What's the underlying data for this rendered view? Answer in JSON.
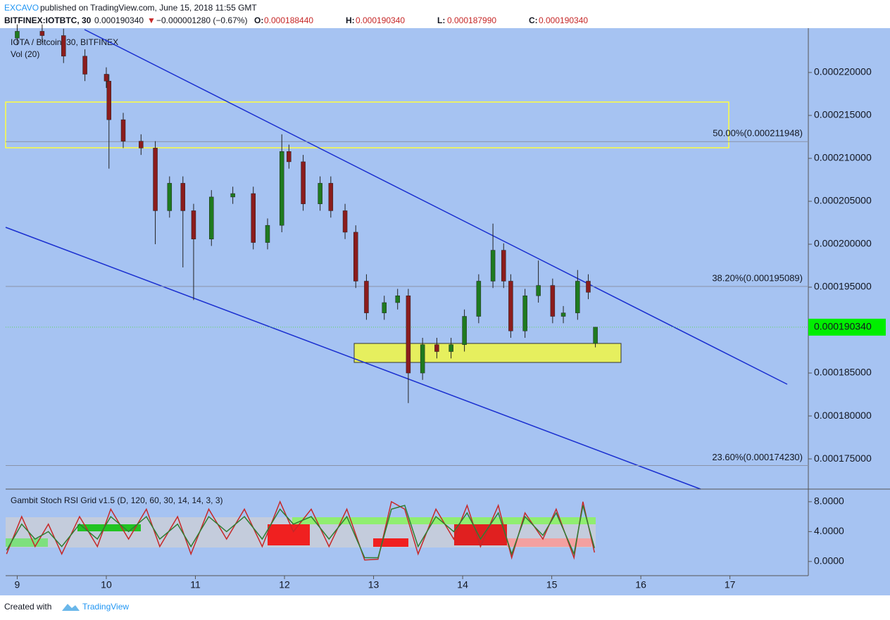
{
  "header": {
    "author": "EXCAVO",
    "published": "published on TradingView.com, June 15, 2018 11:55 GMT",
    "symbol": "BITFINEX:IOTBTC, 30",
    "price": "0.000190340",
    "arrow": "▼",
    "change": "−0.000001280 (−0.67%)",
    "ohlc": [
      {
        "label": "O:",
        "value": "0.000188440"
      },
      {
        "label": "H:",
        "value": "0.000190340"
      },
      {
        "label": "L:",
        "value": "0.000187990"
      },
      {
        "label": "C:",
        "value": "0.000190340"
      }
    ],
    "legend": "IOTA / Bitcoin, 30, BITFINEX",
    "volume": "Vol (20)"
  },
  "footer": {
    "created": "Created with",
    "brand": "TradingView"
  },
  "chart_data": [
    {
      "type": "candlestick",
      "up_color": "#1f7a1f",
      "down_color": "#8b1c1c",
      "x": [
        9.0,
        9.28,
        9.52,
        9.76,
        10.0,
        10.03,
        10.19,
        10.39,
        10.55,
        10.71,
        10.86,
        10.98,
        11.18,
        11.42,
        11.65,
        11.81,
        11.97,
        12.05,
        12.21,
        12.4,
        12.52,
        12.68,
        12.8,
        12.92,
        13.12,
        13.27,
        13.39,
        13.55,
        13.71,
        13.87,
        14.02,
        14.18,
        14.34,
        14.46,
        14.54,
        14.7,
        14.85,
        15.01,
        15.13,
        15.29,
        15.41,
        15.49
      ],
      "open": [
        0.000224,
        0.0002248,
        0.0002243,
        0.0002219,
        0.0002198,
        0.000219,
        0.0002145,
        0.000212,
        0.0002112,
        0.0002039,
        0.0002071,
        0.0002039,
        0.0002006,
        0.0002055,
        0.0002059,
        0.0002002,
        0.0002022,
        0.0002108,
        0.0002096,
        0.0002047,
        0.0002071,
        0.0002039,
        0.0002014,
        0.0001957,
        0.000192,
        0.0001932,
        0.000194,
        0.000185,
        0.0001883,
        0.0001875,
        0.0001883,
        0.0001916,
        0.0001957,
        0.0001993,
        0.0001957,
        0.0001899,
        0.000194,
        0.0001952,
        0.0001916,
        0.000192,
        0.0001957,
        0.00018844
      ],
      "high": [
        0.0002256,
        0.0002256,
        0.0002251,
        0.0002227,
        0.0002206,
        0.0002198,
        0.0002153,
        0.0002128,
        0.000212,
        0.0002079,
        0.0002079,
        0.0002047,
        0.0002063,
        0.0002067,
        0.0002067,
        0.000203,
        0.0002128,
        0.0002116,
        0.0002104,
        0.0002079,
        0.0002079,
        0.0002047,
        0.0002022,
        0.0001965,
        0.000194,
        0.0001948,
        0.0001948,
        0.0001891,
        0.0001891,
        0.0001891,
        0.0001924,
        0.0001965,
        0.0002024,
        0.0002001,
        0.0001965,
        0.0001948,
        0.0001981,
        0.000196,
        0.0001928,
        0.000197,
        0.0001965,
        0.00019034
      ],
      "low": [
        0.0002232,
        0.0002235,
        0.0002211,
        0.000219,
        0.0002182,
        0.0002088,
        0.0002112,
        0.0002104,
        0.0002,
        0.0002031,
        0.0001973,
        0.0001935,
        0.0001998,
        0.0002047,
        0.0001994,
        0.0001994,
        0.0002014,
        0.0002088,
        0.0002039,
        0.0002039,
        0.0002031,
        0.0002006,
        0.0001949,
        0.0001912,
        0.0001912,
        0.0001924,
        0.0001815,
        0.0001842,
        0.0001867,
        0.0001867,
        0.0001875,
        0.0001908,
        0.0001949,
        0.0001949,
        0.0001891,
        0.0001891,
        0.0001932,
        0.0001908,
        0.0001908,
        0.0001912,
        0.0001936,
        0.00018799
      ],
      "close": [
        0.0002248,
        0.0002243,
        0.0002219,
        0.0002198,
        0.000219,
        0.0002145,
        0.000212,
        0.0002112,
        0.0002039,
        0.0002071,
        0.0002039,
        0.0002006,
        0.0002055,
        0.0002059,
        0.0002002,
        0.0002022,
        0.0002108,
        0.0002096,
        0.0002047,
        0.0002071,
        0.0002039,
        0.0002014,
        0.0001957,
        0.000192,
        0.0001932,
        0.000194,
        0.000185,
        0.0001883,
        0.0001875,
        0.0001883,
        0.0001916,
        0.0001957,
        0.0001993,
        0.0001957,
        0.0001899,
        0.000194,
        0.0001952,
        0.0001916,
        0.000192,
        0.0001957,
        0.0001944,
        0.00019034
      ],
      "xlim": [
        8.87,
        17.88
      ],
      "xticks": [
        9,
        10,
        11,
        12,
        13,
        14,
        15,
        16,
        17
      ],
      "ylim": [
        0.00017148,
        0.000225
      ],
      "yticks": [
        {
          "value": 0.000175,
          "label": "0.000175000"
        },
        {
          "value": 0.00018,
          "label": "0.000180000"
        },
        {
          "value": 0.000185,
          "label": "0.000185000"
        },
        {
          "value": 0.00019,
          "label": "0.000190000"
        },
        {
          "value": 0.000195,
          "label": "0.000195000"
        },
        {
          "value": 0.0002,
          "label": "0.000200000"
        },
        {
          "value": 0.000205,
          "label": "0.000205000"
        },
        {
          "value": 0.00021,
          "label": "0.000210000"
        },
        {
          "value": 0.000215,
          "label": "0.000215000"
        },
        {
          "value": 0.00022,
          "label": "0.000220000"
        }
      ],
      "fib_levels": [
        {
          "value": 0.000211948,
          "label": "50.00%(0.000211948)"
        },
        {
          "value": 0.000195089,
          "label": "38.20%(0.000195089)"
        },
        {
          "value": 0.00017423,
          "label": "23.60%(0.000174230)"
        }
      ],
      "last_price": {
        "value": 0.00019034,
        "label": "0.000190340"
      },
      "grid": false
    },
    {
      "type": "line",
      "title": "Gambit Stoch RSI Grid v1.5 (D, 120, 60, 30, 14, 14, 3, 3)",
      "x": [
        8.88,
        9.05,
        9.2,
        9.35,
        9.5,
        9.7,
        9.9,
        10.05,
        10.25,
        10.45,
        10.6,
        10.8,
        10.95,
        11.15,
        11.35,
        11.55,
        11.75,
        11.95,
        12.1,
        12.3,
        12.5,
        12.7,
        12.9,
        13.05,
        13.2,
        13.35,
        13.5,
        13.7,
        13.9,
        14.05,
        14.2,
        14.4,
        14.55,
        14.7,
        14.9,
        15.05,
        15.25,
        15.35,
        15.48
      ],
      "series": [
        {
          "color": "#c62828",
          "values": [
            1,
            6,
            2,
            5,
            1,
            6,
            2,
            7,
            3,
            7,
            2,
            6,
            1,
            7,
            3,
            7,
            2,
            8,
            4,
            7,
            2,
            7,
            0.2,
            0.3,
            8,
            7,
            1,
            7,
            3,
            7.5,
            2,
            7.5,
            0.5,
            6.5,
            3,
            7,
            0.5,
            8,
            1.2
          ]
        },
        {
          "color": "#2e7d32",
          "values": [
            1.5,
            5,
            3,
            4,
            2,
            5,
            3,
            6,
            4,
            6,
            3,
            5,
            2,
            6,
            4,
            6,
            3,
            7,
            5,
            6,
            3,
            6,
            0.5,
            0.5,
            7,
            7.5,
            2,
            6,
            4,
            6.5,
            3,
            6.5,
            1,
            6,
            3.5,
            6.5,
            1,
            7.5,
            1.8
          ]
        }
      ],
      "xlim": [
        8.87,
        17.88
      ],
      "ylim": [
        -1.9,
        9.5
      ],
      "yticks": [
        {
          "value": 0,
          "label": "0.0000"
        },
        {
          "value": 4,
          "label": "4.0000"
        },
        {
          "value": 8,
          "label": "8.0000"
        }
      ]
    }
  ]
}
